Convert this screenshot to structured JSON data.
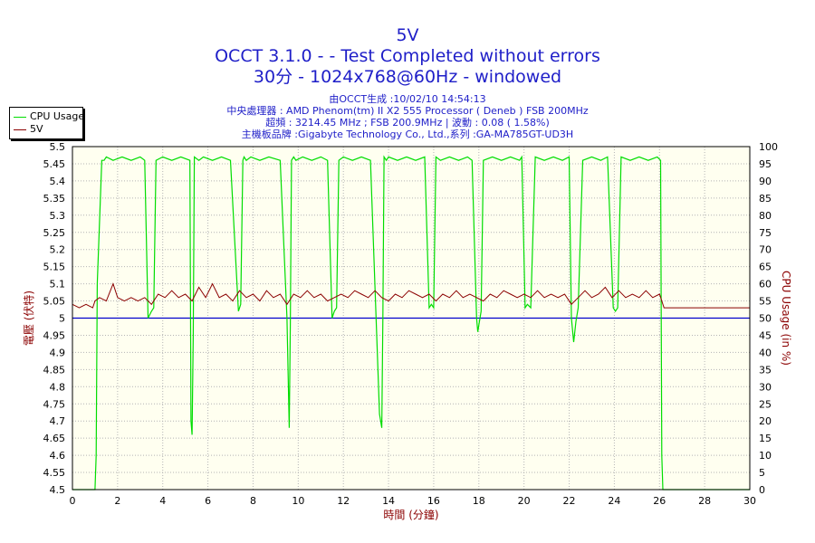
{
  "title": {
    "line1": "5V",
    "line2": "OCCT 3.1.0 -  - Test Completed without errors",
    "line3": "30分 - 1024x768@60Hz - windowed"
  },
  "info": {
    "generated": "由OCCT生成 :10/02/10 14:54:13",
    "cpu": "中央處理器 : AMD Phenom(tm) II X2 555 Processor ( Deneb ) FSB 200MHz",
    "freq": "超頻 : 3214.45 MHz ; FSB 200.9MHz | 波動 : 0.08 ( 1.58%)",
    "board": "主機板品牌 :Gigabyte Technology Co., Ltd.,系列 :GA-MA785GT-UD3H"
  },
  "colors": {
    "cpu_usage": "#00dd00",
    "voltage": "#8b0000",
    "reference": "#0000cc",
    "plot_bg": "#fffff0",
    "grid": "#b4b4b4"
  },
  "chart_data": {
    "type": "line",
    "xlabel": "時間 (分鐘)",
    "ylabel": "電壓 (伏特)",
    "y2label": "CPU Usage (in %)",
    "xlim": [
      0,
      30
    ],
    "ylim": [
      4.5,
      5.5
    ],
    "y2lim": [
      0,
      100
    ],
    "x_ticks": [
      "0",
      "2",
      "4",
      "6",
      "8",
      "10",
      "12",
      "14",
      "16",
      "18",
      "20",
      "22",
      "24",
      "26",
      "28",
      "30"
    ],
    "y_ticks": [
      "4.5",
      "4.55",
      "4.6",
      "4.65",
      "4.7",
      "4.75",
      "4.8",
      "4.85",
      "4.9",
      "4.95",
      "5",
      "5.05",
      "5.1",
      "5.15",
      "5.2",
      "5.25",
      "5.3",
      "5.35",
      "5.4",
      "5.45",
      "5.5"
    ],
    "y2_ticks": [
      "0",
      "5",
      "10",
      "15",
      "20",
      "25",
      "30",
      "35",
      "40",
      "45",
      "50",
      "55",
      "60",
      "65",
      "70",
      "75",
      "80",
      "85",
      "90",
      "95",
      "100"
    ],
    "grid": true,
    "legend_position": "top-left",
    "reference_line": 5.0,
    "series": [
      {
        "name": "CPU Usage",
        "axis": "right",
        "x": [
          0.0,
          0.95,
          1.0,
          1.05,
          1.1,
          1.3,
          1.4,
          1.5,
          1.8,
          2.2,
          2.6,
          3.0,
          3.2,
          3.35,
          3.5,
          3.6,
          3.7,
          4.0,
          4.4,
          4.8,
          5.2,
          5.25,
          5.3,
          5.35,
          5.4,
          5.6,
          5.8,
          6.2,
          6.6,
          7.0,
          7.35,
          7.45,
          7.55,
          7.6,
          7.7,
          7.9,
          8.3,
          8.7,
          9.2,
          9.5,
          9.6,
          9.65,
          9.7,
          9.8,
          9.9,
          10.2,
          10.6,
          11.0,
          11.3,
          11.5,
          11.6,
          11.7,
          11.8,
          12.0,
          12.4,
          12.8,
          13.2,
          13.6,
          13.7,
          13.75,
          13.8,
          13.9,
          14.0,
          14.4,
          14.8,
          15.2,
          15.6,
          15.8,
          15.9,
          16.0,
          16.1,
          16.3,
          16.7,
          17.1,
          17.5,
          17.7,
          17.9,
          17.95,
          18.0,
          18.1,
          18.2,
          18.6,
          19.0,
          19.4,
          19.8,
          19.9,
          20.05,
          20.15,
          20.3,
          20.5,
          20.9,
          21.3,
          21.7,
          22.0,
          22.1,
          22.2,
          22.3,
          22.4,
          22.6,
          23.0,
          23.4,
          23.7,
          23.95,
          24.05,
          24.15,
          24.3,
          24.7,
          25.1,
          25.5,
          25.9,
          26.05,
          26.1,
          26.15,
          26.2,
          26.5,
          28.0,
          30.0
        ],
        "values": [
          0,
          0,
          0,
          10,
          60,
          96,
          96,
          97,
          96,
          97,
          96,
          97,
          96,
          50,
          52,
          53,
          96,
          97,
          96,
          97,
          96,
          20,
          16,
          45,
          97,
          96,
          97,
          96,
          97,
          96,
          52,
          54,
          96,
          97,
          96,
          97,
          96,
          97,
          96,
          50,
          18,
          48,
          96,
          97,
          96,
          97,
          96,
          97,
          96,
          50,
          52,
          53,
          96,
          97,
          96,
          97,
          96,
          22,
          18,
          50,
          97,
          96,
          97,
          96,
          97,
          96,
          97,
          53,
          54,
          53,
          97,
          96,
          97,
          96,
          97,
          96,
          50,
          46,
          48,
          52,
          96,
          97,
          96,
          97,
          96,
          97,
          53,
          54,
          53,
          97,
          96,
          97,
          96,
          97,
          50,
          43,
          49,
          53,
          96,
          97,
          96,
          97,
          53,
          52,
          53,
          97,
          96,
          97,
          96,
          97,
          96,
          10,
          0,
          0,
          0,
          0,
          0
        ]
      },
      {
        "name": "5V",
        "axis": "left",
        "x": [
          0.0,
          0.3,
          0.6,
          0.9,
          1.0,
          1.2,
          1.5,
          1.8,
          2.0,
          2.3,
          2.6,
          2.9,
          3.2,
          3.5,
          3.8,
          4.1,
          4.4,
          4.7,
          5.0,
          5.3,
          5.6,
          5.9,
          6.2,
          6.5,
          6.8,
          7.1,
          7.4,
          7.7,
          8.0,
          8.3,
          8.6,
          8.9,
          9.2,
          9.5,
          9.8,
          10.1,
          10.4,
          10.7,
          11.0,
          11.3,
          11.6,
          11.9,
          12.2,
          12.5,
          12.8,
          13.1,
          13.4,
          13.7,
          14.0,
          14.3,
          14.6,
          14.9,
          15.2,
          15.5,
          15.8,
          16.1,
          16.4,
          16.7,
          17.0,
          17.3,
          17.6,
          17.9,
          18.2,
          18.5,
          18.8,
          19.1,
          19.4,
          19.7,
          20.0,
          20.3,
          20.6,
          20.9,
          21.2,
          21.5,
          21.8,
          22.1,
          22.4,
          22.7,
          23.0,
          23.3,
          23.6,
          23.9,
          24.2,
          24.5,
          24.8,
          25.1,
          25.4,
          25.7,
          26.0,
          26.2,
          26.5,
          28.0,
          30.0
        ],
        "values": [
          5.04,
          5.03,
          5.04,
          5.03,
          5.05,
          5.06,
          5.05,
          5.1,
          5.06,
          5.05,
          5.06,
          5.05,
          5.06,
          5.04,
          5.07,
          5.06,
          5.08,
          5.06,
          5.07,
          5.05,
          5.09,
          5.06,
          5.1,
          5.06,
          5.07,
          5.05,
          5.08,
          5.06,
          5.07,
          5.05,
          5.08,
          5.06,
          5.07,
          5.04,
          5.07,
          5.06,
          5.08,
          5.06,
          5.07,
          5.05,
          5.06,
          5.07,
          5.06,
          5.08,
          5.07,
          5.06,
          5.08,
          5.06,
          5.05,
          5.07,
          5.06,
          5.08,
          5.07,
          5.06,
          5.07,
          5.05,
          5.07,
          5.06,
          5.08,
          5.06,
          5.07,
          5.06,
          5.05,
          5.07,
          5.06,
          5.08,
          5.07,
          5.06,
          5.07,
          5.06,
          5.08,
          5.06,
          5.07,
          5.06,
          5.07,
          5.04,
          5.06,
          5.08,
          5.06,
          5.07,
          5.09,
          5.06,
          5.08,
          5.06,
          5.07,
          5.06,
          5.08,
          5.06,
          5.07,
          5.03,
          5.03,
          5.03,
          5.03
        ]
      }
    ]
  }
}
